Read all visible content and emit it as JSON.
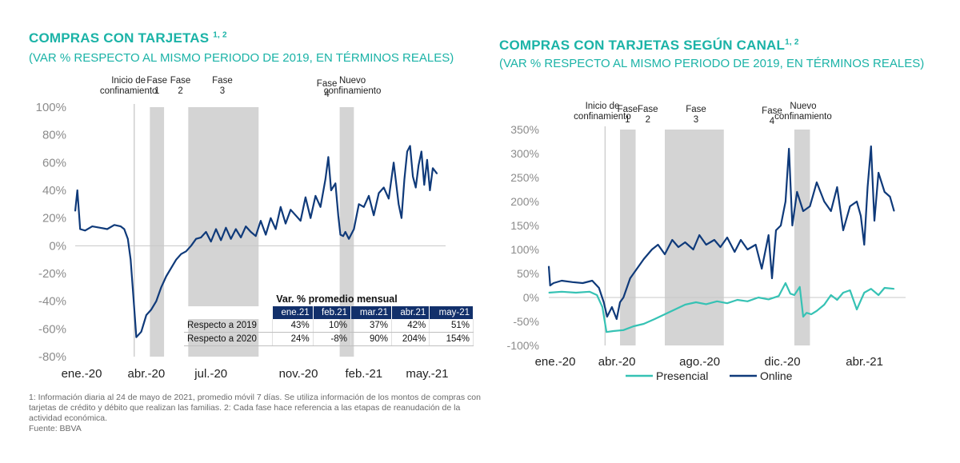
{
  "footnote": "1: Información diaria al 24 de mayo de 2021, promedio móvil 7 días. Se utiliza información de los montos de compras con tarjetas de crédito y débito que realizan las familias. 2: Cada fase hace referencia a las etapas de reanudación de la actividad económica.",
  "source": "Fuente: BBVA",
  "colors": {
    "title": "#1bb3a7",
    "online": "#0f3a7a",
    "presencial": "#36c2b4",
    "phase_band": "#d4d4d4",
    "table_header": "#12306b"
  },
  "chart_data": [
    {
      "type": "line",
      "title": "COMPRAS CON TARJETAS",
      "title_sup": "1, 2",
      "subtitle": "(VAR % RESPECTO AL MISMO PERIODO DE 2019, EN TÉRMINOS REALES)",
      "xlabel": "",
      "ylabel": "",
      "ylim": [
        -80,
        100
      ],
      "yticks": [
        "100%",
        "80%",
        "60%",
        "40%",
        "20%",
        "0%",
        "-20%",
        "-40%",
        "-60%",
        "-80%"
      ],
      "xticks": [
        "ene.-20",
        "abr.-20",
        "jul.-20",
        "nov.-20",
        "feb.-21",
        "may.-21"
      ],
      "grid": false,
      "series": [
        {
          "name": "",
          "x": [
            "2020-01-01",
            "2020-01-04",
            "2020-01-08",
            "2020-01-15",
            "2020-01-25",
            "2020-02-05",
            "2020-02-15",
            "2020-02-25",
            "2020-03-05",
            "2020-03-10",
            "2020-03-15",
            "2020-03-19",
            "2020-03-23",
            "2020-03-27",
            "2020-04-03",
            "2020-04-10",
            "2020-04-17",
            "2020-04-24",
            "2020-05-01",
            "2020-05-08",
            "2020-05-15",
            "2020-05-22",
            "2020-05-29",
            "2020-06-05",
            "2020-06-12",
            "2020-06-19",
            "2020-06-26",
            "2020-07-03",
            "2020-07-10",
            "2020-07-17",
            "2020-07-24",
            "2020-07-31",
            "2020-08-07",
            "2020-08-14",
            "2020-08-21",
            "2020-08-28",
            "2020-09-04",
            "2020-09-11",
            "2020-09-18",
            "2020-09-25",
            "2020-10-02",
            "2020-10-09",
            "2020-10-16",
            "2020-10-23",
            "2020-10-30",
            "2020-11-06",
            "2020-11-13",
            "2020-11-20",
            "2020-11-27",
            "2020-12-04",
            "2020-12-11",
            "2020-12-18",
            "2020-12-22",
            "2020-12-26",
            "2021-01-01",
            "2021-01-05",
            "2021-01-08",
            "2021-01-12",
            "2021-01-15",
            "2021-01-20",
            "2021-01-27",
            "2021-02-03",
            "2021-02-10",
            "2021-02-17",
            "2021-02-24",
            "2021-03-03",
            "2021-03-10",
            "2021-03-17",
            "2021-03-24",
            "2021-03-31",
            "2021-04-04",
            "2021-04-08",
            "2021-04-12",
            "2021-04-16",
            "2021-04-20",
            "2021-04-24",
            "2021-04-28",
            "2021-05-02",
            "2021-05-06",
            "2021-05-10",
            "2021-05-14",
            "2021-05-18",
            "2021-05-24"
          ],
          "values": [
            25,
            40,
            12,
            11,
            14,
            13,
            12,
            15,
            14,
            12,
            5,
            -10,
            -38,
            -66,
            -62,
            -50,
            -46,
            -40,
            -30,
            -22,
            -16,
            -10,
            -6,
            -4,
            0,
            5,
            6,
            10,
            3,
            12,
            4,
            13,
            5,
            12,
            6,
            14,
            10,
            7,
            18,
            8,
            20,
            12,
            28,
            16,
            26,
            22,
            18,
            35,
            20,
            36,
            28,
            48,
            64,
            40,
            45,
            22,
            8,
            7,
            10,
            5,
            12,
            30,
            28,
            36,
            22,
            38,
            42,
            34,
            60,
            30,
            20,
            48,
            68,
            72,
            50,
            42,
            58,
            68,
            44,
            62,
            40,
            56,
            52
          ]
        }
      ],
      "phase_labels": [
        "Inicio de confinamiento",
        "Fase 1",
        "Fase 2",
        "Fase 3",
        "Fase 4",
        "Nuevo confinamiento"
      ],
      "table": {
        "title": "Var. % promedio mensual",
        "columns": [
          "",
          "ene.21",
          "feb.21",
          "mar.21",
          "abr.21",
          "may-21"
        ],
        "rows": [
          [
            "Respecto a 2019",
            "43%",
            "10%",
            "37%",
            "42%",
            "51%"
          ],
          [
            "Respecto a 2020",
            "24%",
            "-8%",
            "90%",
            "204%",
            "154%"
          ]
        ]
      }
    },
    {
      "type": "line",
      "title": "COMPRAS CON TARJETAS  SEGÚN CANAL",
      "title_sup": "1,  2",
      "subtitle": "(VAR % RESPECTO AL MISMO PERIODO DE 2019, EN TÉRMINOS REALES)",
      "xlabel": "",
      "ylabel": "",
      "ylim": [
        -100,
        350
      ],
      "yticks": [
        "350%",
        "300%",
        "250%",
        "200%",
        "150%",
        "100%",
        "50%",
        "0%",
        "-50%",
        "-100%"
      ],
      "xticks": [
        "ene.-20",
        "abr.-20",
        "ago.-20",
        "dic.-20",
        "abr.-21"
      ],
      "grid": false,
      "legend": "bottom",
      "series": [
        {
          "name": "Presencial",
          "x": [
            "2020-01-01",
            "2020-01-20",
            "2020-02-10",
            "2020-03-01",
            "2020-03-12",
            "2020-03-20",
            "2020-03-26",
            "2020-04-05",
            "2020-04-20",
            "2020-05-05",
            "2020-05-20",
            "2020-06-05",
            "2020-06-20",
            "2020-07-05",
            "2020-07-20",
            "2020-08-05",
            "2020-08-20",
            "2020-09-05",
            "2020-09-20",
            "2020-10-05",
            "2020-10-20",
            "2020-11-05",
            "2020-11-20",
            "2020-12-05",
            "2020-12-15",
            "2020-12-22",
            "2020-12-28",
            "2021-01-05",
            "2021-01-10",
            "2021-01-15",
            "2021-01-22",
            "2021-01-30",
            "2021-02-10",
            "2021-02-20",
            "2021-03-01",
            "2021-03-10",
            "2021-03-20",
            "2021-03-30",
            "2021-04-10",
            "2021-04-20",
            "2021-05-01",
            "2021-05-10",
            "2021-05-24"
          ],
          "values": [
            10,
            12,
            10,
            12,
            5,
            -20,
            -72,
            -70,
            -68,
            -60,
            -55,
            -45,
            -35,
            -25,
            -15,
            -10,
            -14,
            -8,
            -12,
            -5,
            -8,
            0,
            -4,
            3,
            30,
            8,
            5,
            22,
            -40,
            -32,
            -35,
            -28,
            -15,
            5,
            -5,
            10,
            15,
            -25,
            10,
            18,
            5,
            20,
            18
          ]
        },
        {
          "name": "Online",
          "x": [
            "2020-01-01",
            "2020-01-03",
            "2020-01-08",
            "2020-01-20",
            "2020-02-05",
            "2020-02-20",
            "2020-03-05",
            "2020-03-15",
            "2020-03-22",
            "2020-03-27",
            "2020-04-03",
            "2020-04-10",
            "2020-04-15",
            "2020-04-20",
            "2020-04-30",
            "2020-05-10",
            "2020-05-20",
            "2020-06-01",
            "2020-06-10",
            "2020-06-20",
            "2020-07-01",
            "2020-07-10",
            "2020-07-20",
            "2020-08-01",
            "2020-08-10",
            "2020-08-20",
            "2020-09-01",
            "2020-09-10",
            "2020-09-20",
            "2020-10-01",
            "2020-10-10",
            "2020-10-20",
            "2020-11-01",
            "2020-11-10",
            "2020-11-20",
            "2020-11-25",
            "2020-12-01",
            "2020-12-08",
            "2020-12-15",
            "2020-12-20",
            "2020-12-25",
            "2021-01-01",
            "2021-01-10",
            "2021-01-20",
            "2021-01-30",
            "2021-02-10",
            "2021-02-20",
            "2021-03-01",
            "2021-03-10",
            "2021-03-20",
            "2021-03-30",
            "2021-04-05",
            "2021-04-10",
            "2021-04-15",
            "2021-04-20",
            "2021-04-25",
            "2021-05-01",
            "2021-05-10",
            "2021-05-18",
            "2021-05-24"
          ],
          "values": [
            65,
            25,
            30,
            35,
            32,
            30,
            35,
            20,
            -10,
            -40,
            -20,
            -45,
            -10,
            0,
            40,
            60,
            80,
            100,
            110,
            90,
            120,
            105,
            115,
            100,
            130,
            110,
            120,
            105,
            125,
            95,
            120,
            100,
            110,
            60,
            130,
            40,
            140,
            150,
            200,
            310,
            150,
            220,
            180,
            190,
            240,
            200,
            180,
            230,
            140,
            190,
            200,
            170,
            110,
            230,
            315,
            160,
            260,
            220,
            210,
            180
          ]
        }
      ],
      "phase_labels": [
        "Inicio de confinamiento",
        "Fase 1",
        "Fase 2",
        "Fase 3",
        "Fase 4",
        "Nuevo confinamiento"
      ]
    }
  ]
}
